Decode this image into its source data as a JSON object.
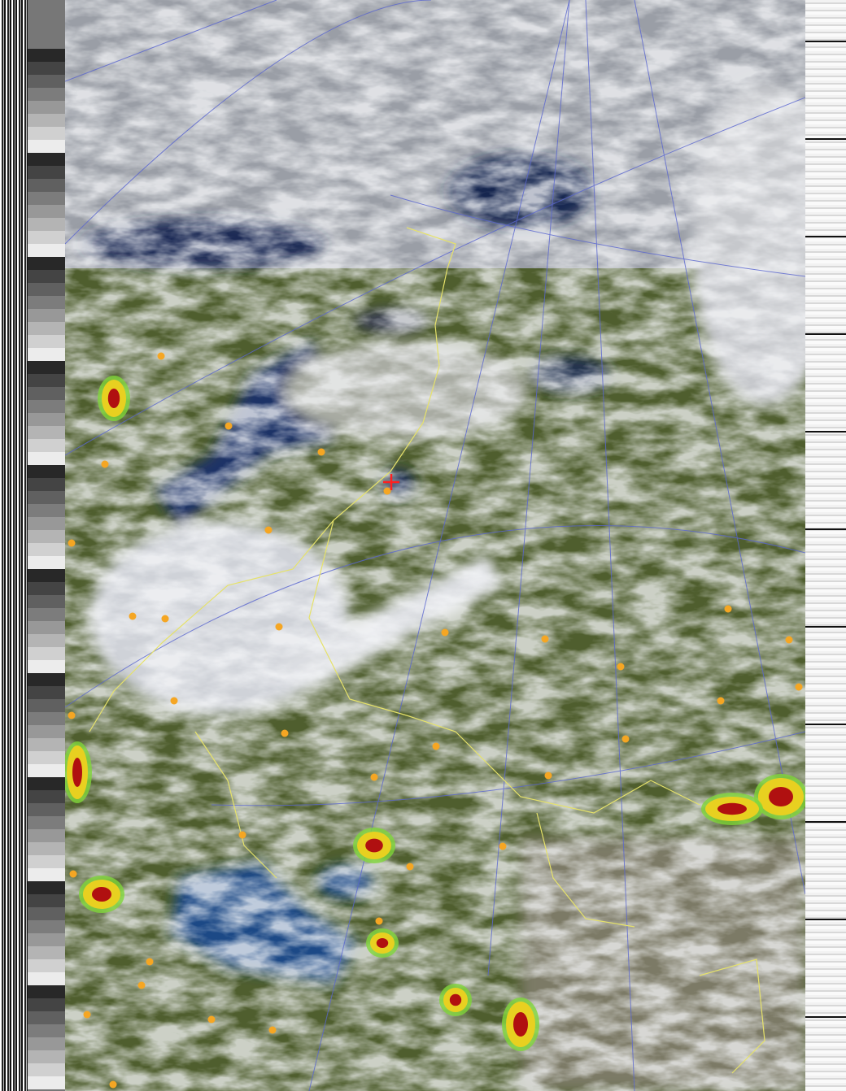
{
  "image": {
    "kind": "satellite-weather-image",
    "colors": {
      "cloud": "#e6e8ec",
      "land": "#4f5e2e",
      "water": "#1b2f5a",
      "borders": "#e6e26a",
      "graticule": "#5a66d0",
      "coastline": "#4cc24c",
      "city_marker": "#f5a623",
      "location_marker": "#ff2020",
      "precip_heavy": "#b01010"
    },
    "icons": [
      "city-marker-icon",
      "location-crosshair-icon"
    ]
  }
}
